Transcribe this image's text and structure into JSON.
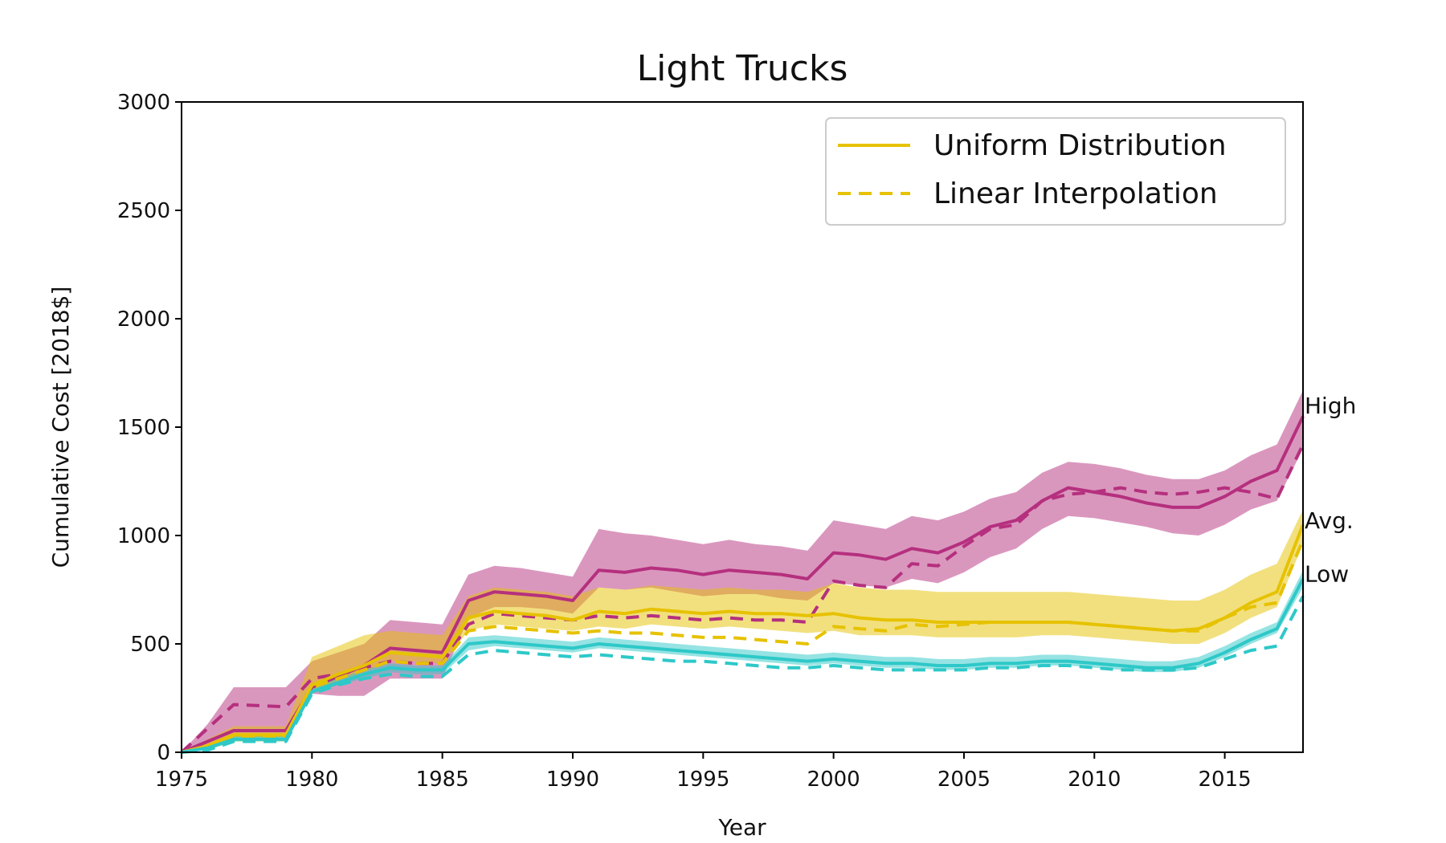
{
  "chart_data": {
    "type": "line",
    "title": "Light Trucks",
    "xlabel": "Year",
    "ylabel": "Cumulative Cost [2018$]",
    "xlim": [
      1975,
      2018
    ],
    "ylim": [
      0,
      3000
    ],
    "xticks": [
      1975,
      1980,
      1985,
      1990,
      1995,
      2000,
      2005,
      2010,
      2015
    ],
    "yticks": [
      0,
      500,
      1000,
      1500,
      2000,
      2500,
      3000
    ],
    "legend": {
      "placement": "top-right",
      "entries": [
        {
          "label": "Uniform Distribution",
          "style": "solid"
        },
        {
          "label": "Linear Interpolation",
          "style": "dashed"
        }
      ],
      "color": "#e6c200"
    },
    "colors": {
      "high": "#b5307e",
      "avg": "#e6c200",
      "low": "#2ec8c8"
    },
    "annotations": [
      {
        "text": "High",
        "x": 2018,
        "y": 1600
      },
      {
        "text": "Avg.",
        "x": 2018,
        "y": 1070
      },
      {
        "text": "Low",
        "x": 2018,
        "y": 825
      }
    ],
    "x": [
      1975,
      1976,
      1977,
      1978,
      1979,
      1980,
      1981,
      1982,
      1983,
      1984,
      1985,
      1986,
      1987,
      1988,
      1989,
      1990,
      1991,
      1992,
      1993,
      1994,
      1995,
      1996,
      1997,
      1998,
      1999,
      2000,
      2001,
      2002,
      2003,
      2004,
      2005,
      2006,
      2007,
      2008,
      2009,
      2010,
      2011,
      2012,
      2013,
      2014,
      2015,
      2016,
      2017,
      2018
    ],
    "series": [
      {
        "group": "high",
        "style": "solid",
        "values": [
          0,
          50,
          100,
          100,
          100,
          300,
          350,
          400,
          480,
          470,
          460,
          700,
          740,
          730,
          720,
          700,
          840,
          830,
          850,
          840,
          820,
          840,
          830,
          820,
          800,
          920,
          910,
          890,
          940,
          920,
          970,
          1040,
          1070,
          1160,
          1220,
          1200,
          1180,
          1150,
          1130,
          1130,
          1180,
          1250,
          1300,
          1550
        ],
        "band_low": [
          0,
          20,
          70,
          70,
          70,
          270,
          260,
          260,
          340,
          340,
          340,
          620,
          670,
          670,
          660,
          640,
          760,
          750,
          760,
          740,
          720,
          730,
          730,
          710,
          700,
          780,
          770,
          760,
          800,
          780,
          830,
          900,
          940,
          1030,
          1090,
          1080,
          1060,
          1040,
          1010,
          1000,
          1050,
          1120,
          1160,
          1400
        ],
        "band_high": [
          0,
          130,
          300,
          300,
          300,
          420,
          460,
          500,
          610,
          600,
          590,
          820,
          860,
          850,
          830,
          810,
          1030,
          1010,
          1000,
          980,
          960,
          980,
          960,
          950,
          930,
          1070,
          1050,
          1030,
          1090,
          1070,
          1110,
          1170,
          1200,
          1290,
          1340,
          1330,
          1310,
          1280,
          1260,
          1260,
          1300,
          1370,
          1420,
          1670
        ]
      },
      {
        "group": "high",
        "style": "dashed",
        "values": [
          0,
          110,
          220,
          215,
          210,
          340,
          360,
          390,
          420,
          410,
          410,
          590,
          640,
          630,
          620,
          610,
          630,
          620,
          630,
          620,
          610,
          620,
          610,
          610,
          600,
          790,
          770,
          760,
          870,
          860,
          950,
          1030,
          1050,
          1160,
          1190,
          1200,
          1220,
          1200,
          1190,
          1200,
          1220,
          1200,
          1170,
          1420
        ]
      },
      {
        "group": "avg",
        "style": "solid",
        "values": [
          0,
          30,
          80,
          80,
          80,
          310,
          360,
          400,
          460,
          450,
          440,
          620,
          650,
          640,
          630,
          610,
          650,
          640,
          660,
          650,
          640,
          650,
          640,
          640,
          630,
          640,
          620,
          610,
          610,
          600,
          600,
          600,
          600,
          600,
          600,
          590,
          580,
          570,
          560,
          570,
          620,
          690,
          740,
          1050
        ],
        "band_low": [
          0,
          10,
          50,
          50,
          50,
          280,
          330,
          370,
          420,
          420,
          410,
          560,
          590,
          580,
          570,
          560,
          580,
          570,
          590,
          580,
          570,
          580,
          570,
          560,
          550,
          560,
          540,
          540,
          540,
          530,
          530,
          530,
          530,
          540,
          540,
          530,
          520,
          510,
          500,
          500,
          550,
          620,
          670,
          960
        ],
        "band_high": [
          0,
          60,
          120,
          120,
          120,
          440,
          490,
          540,
          560,
          550,
          540,
          720,
          760,
          750,
          740,
          720,
          760,
          750,
          770,
          760,
          750,
          760,
          750,
          750,
          740,
          780,
          760,
          750,
          750,
          740,
          740,
          740,
          740,
          740,
          740,
          730,
          720,
          710,
          700,
          700,
          750,
          820,
          870,
          1120
        ]
      },
      {
        "group": "avg",
        "style": "dashed",
        "values": [
          0,
          20,
          70,
          70,
          70,
          300,
          340,
          380,
          420,
          410,
          410,
          560,
          580,
          570,
          560,
          550,
          560,
          550,
          550,
          540,
          530,
          530,
          520,
          510,
          500,
          580,
          570,
          560,
          590,
          580,
          590,
          600,
          600,
          600,
          600,
          590,
          580,
          570,
          560,
          560,
          620,
          670,
          690,
          980
        ]
      },
      {
        "group": "low",
        "style": "solid",
        "values": [
          0,
          20,
          60,
          60,
          60,
          280,
          320,
          360,
          390,
          380,
          380,
          500,
          510,
          500,
          490,
          480,
          500,
          490,
          480,
          470,
          460,
          450,
          440,
          430,
          420,
          430,
          420,
          410,
          410,
          400,
          400,
          410,
          410,
          420,
          420,
          410,
          400,
          390,
          390,
          410,
          460,
          520,
          570,
          800
        ],
        "band_low": [
          0,
          10,
          50,
          50,
          50,
          270,
          310,
          340,
          370,
          360,
          360,
          470,
          490,
          480,
          470,
          460,
          480,
          470,
          460,
          450,
          440,
          430,
          420,
          410,
          400,
          410,
          400,
          390,
          390,
          380,
          380,
          390,
          390,
          400,
          400,
          390,
          380,
          370,
          370,
          390,
          440,
          500,
          550,
          760
        ],
        "band_high": [
          0,
          30,
          80,
          80,
          80,
          300,
          340,
          380,
          410,
          400,
          400,
          530,
          540,
          530,
          520,
          510,
          530,
          520,
          510,
          500,
          490,
          480,
          470,
          460,
          450,
          460,
          450,
          440,
          440,
          430,
          430,
          440,
          440,
          450,
          450,
          440,
          430,
          420,
          420,
          440,
          490,
          550,
          600,
          840
        ]
      },
      {
        "group": "low",
        "style": "dashed",
        "values": [
          0,
          10,
          50,
          50,
          50,
          270,
          310,
          340,
          360,
          350,
          350,
          450,
          470,
          460,
          450,
          440,
          450,
          440,
          430,
          420,
          420,
          410,
          400,
          390,
          390,
          400,
          390,
          380,
          380,
          380,
          380,
          390,
          390,
          400,
          400,
          390,
          380,
          380,
          380,
          390,
          430,
          470,
          490,
          720
        ]
      }
    ]
  }
}
